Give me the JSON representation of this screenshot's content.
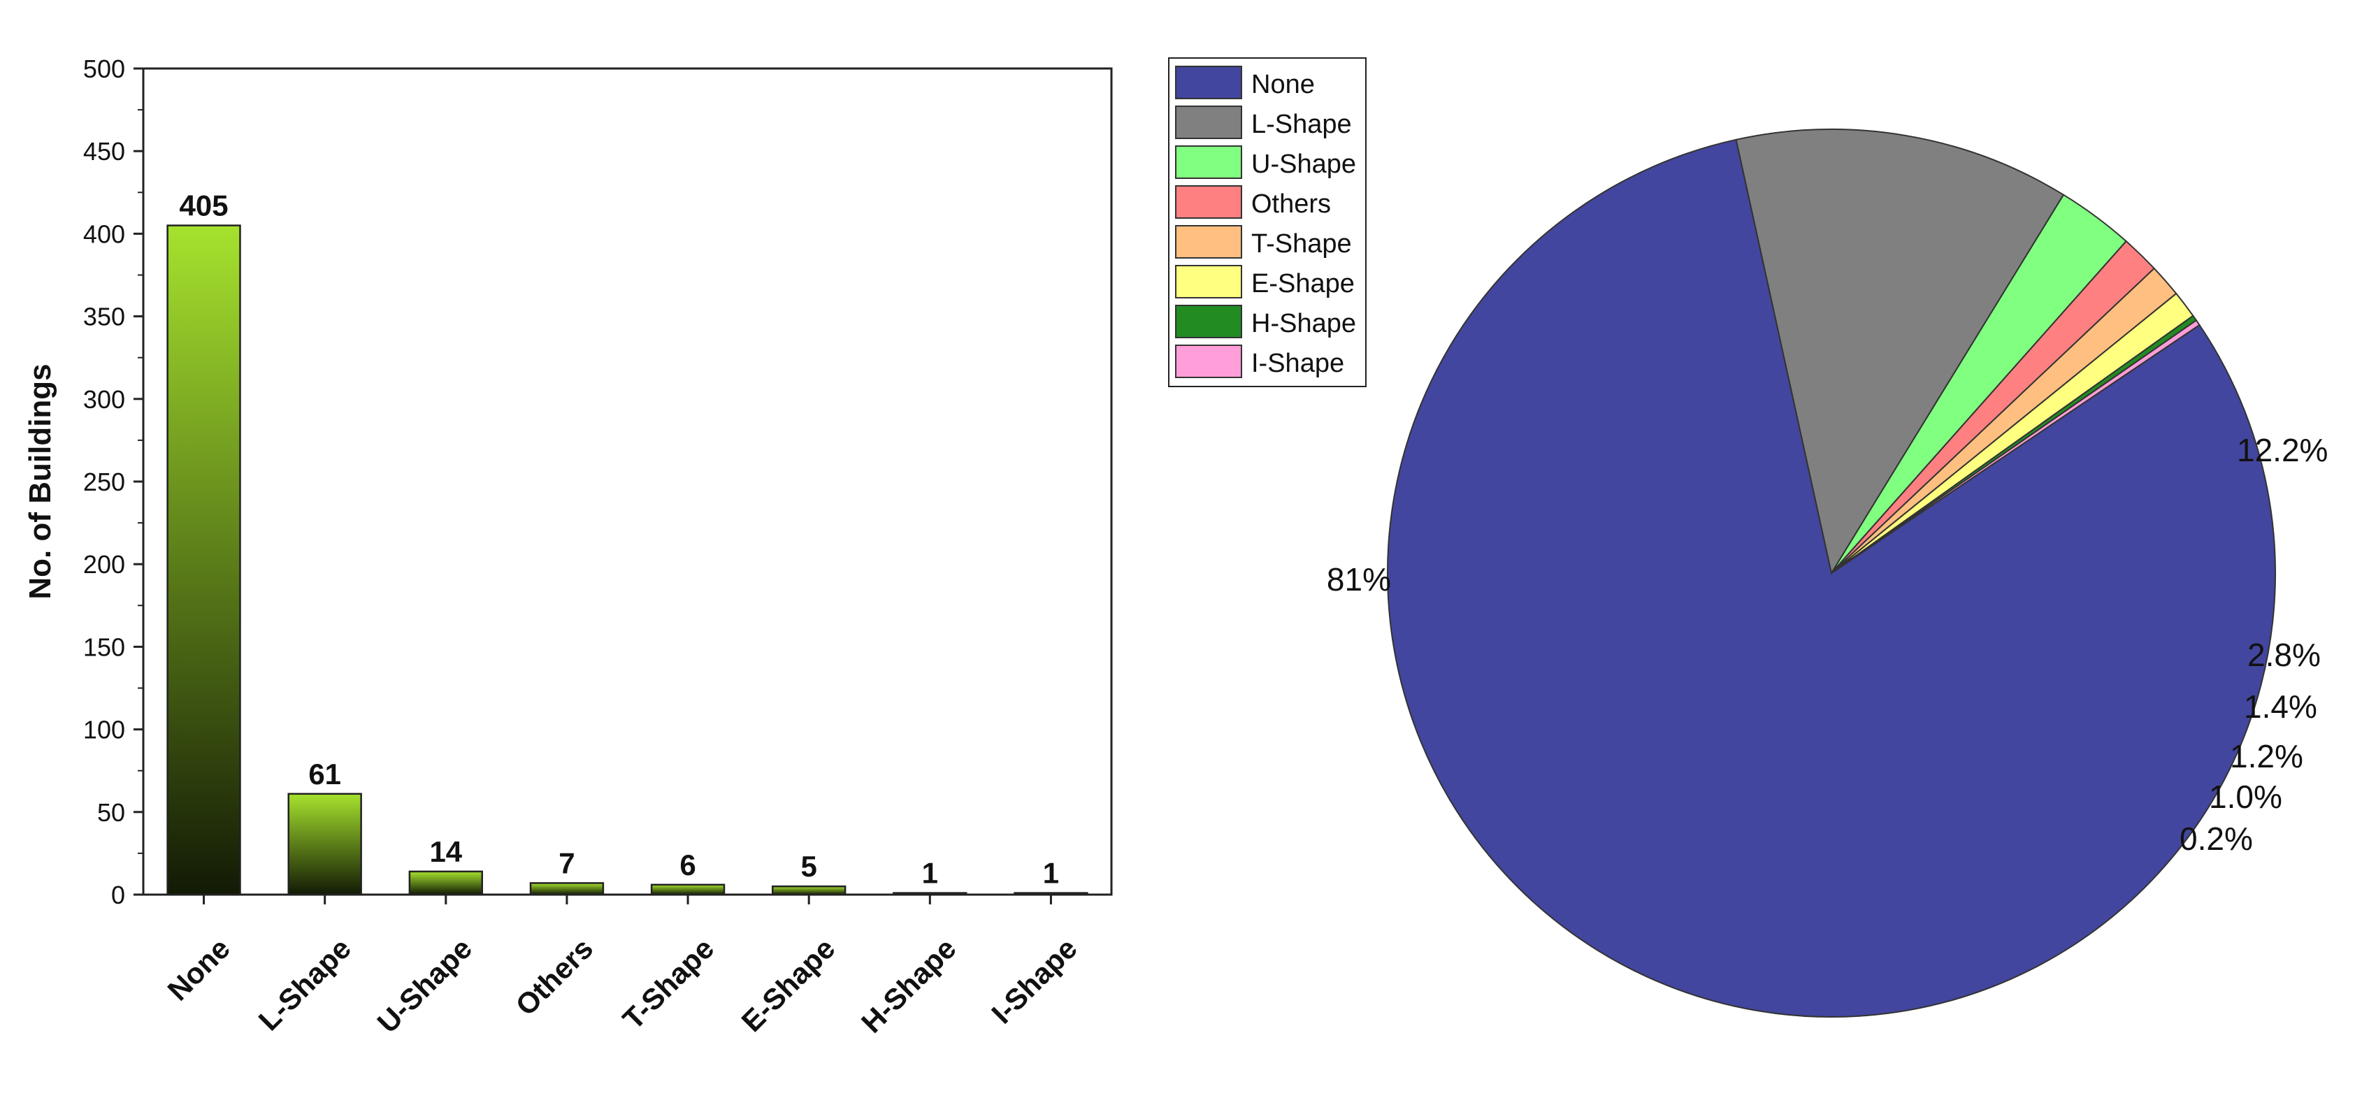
{
  "chart_data": [
    {
      "type": "bar",
      "title": "",
      "xlabel": "",
      "ylabel": "No. of Buildings",
      "ylim": [
        0,
        500
      ],
      "yticks": [
        0,
        50,
        100,
        150,
        200,
        250,
        300,
        350,
        400,
        450,
        500
      ],
      "categories": [
        "None",
        "L-Shape",
        "U-Shape",
        "Others",
        "T-Shape",
        "E-Shape",
        "H-Shape",
        "I-Shape"
      ],
      "values": [
        405,
        61,
        14,
        7,
        6,
        5,
        1,
        1
      ],
      "data_labels": [
        "405",
        "61",
        "14",
        "7",
        "6",
        "5",
        "1",
        "1"
      ],
      "bar_gradient": {
        "top": "#a6e22e",
        "bottom": "#121a05"
      },
      "grid": false
    },
    {
      "type": "pie",
      "title": "",
      "labels": [
        "None",
        "L-Shape",
        "U-Shape",
        "Others",
        "T-Shape",
        "E-Shape",
        "H-Shape",
        "I-Shape"
      ],
      "values": [
        81,
        12.2,
        2.8,
        1.4,
        1.2,
        1.0,
        0.2,
        0.2
      ],
      "slice_labels": [
        "81%",
        "12.2%",
        "2.8%",
        "1.4%",
        "1.2%",
        "1.0%",
        "0.2%",
        ""
      ],
      "colors": [
        "#43469e",
        "#808080",
        "#80ff80",
        "#ff8080",
        "#ffbf80",
        "#ffff80",
        "#228b22",
        "#ff9ed8"
      ],
      "legend": {
        "placement": "top-left",
        "entries": [
          "None",
          "L-Shape",
          "U-Shape",
          "Others",
          "T-Shape",
          "E-Shape",
          "H-Shape",
          "I-Shape"
        ]
      }
    }
  ]
}
